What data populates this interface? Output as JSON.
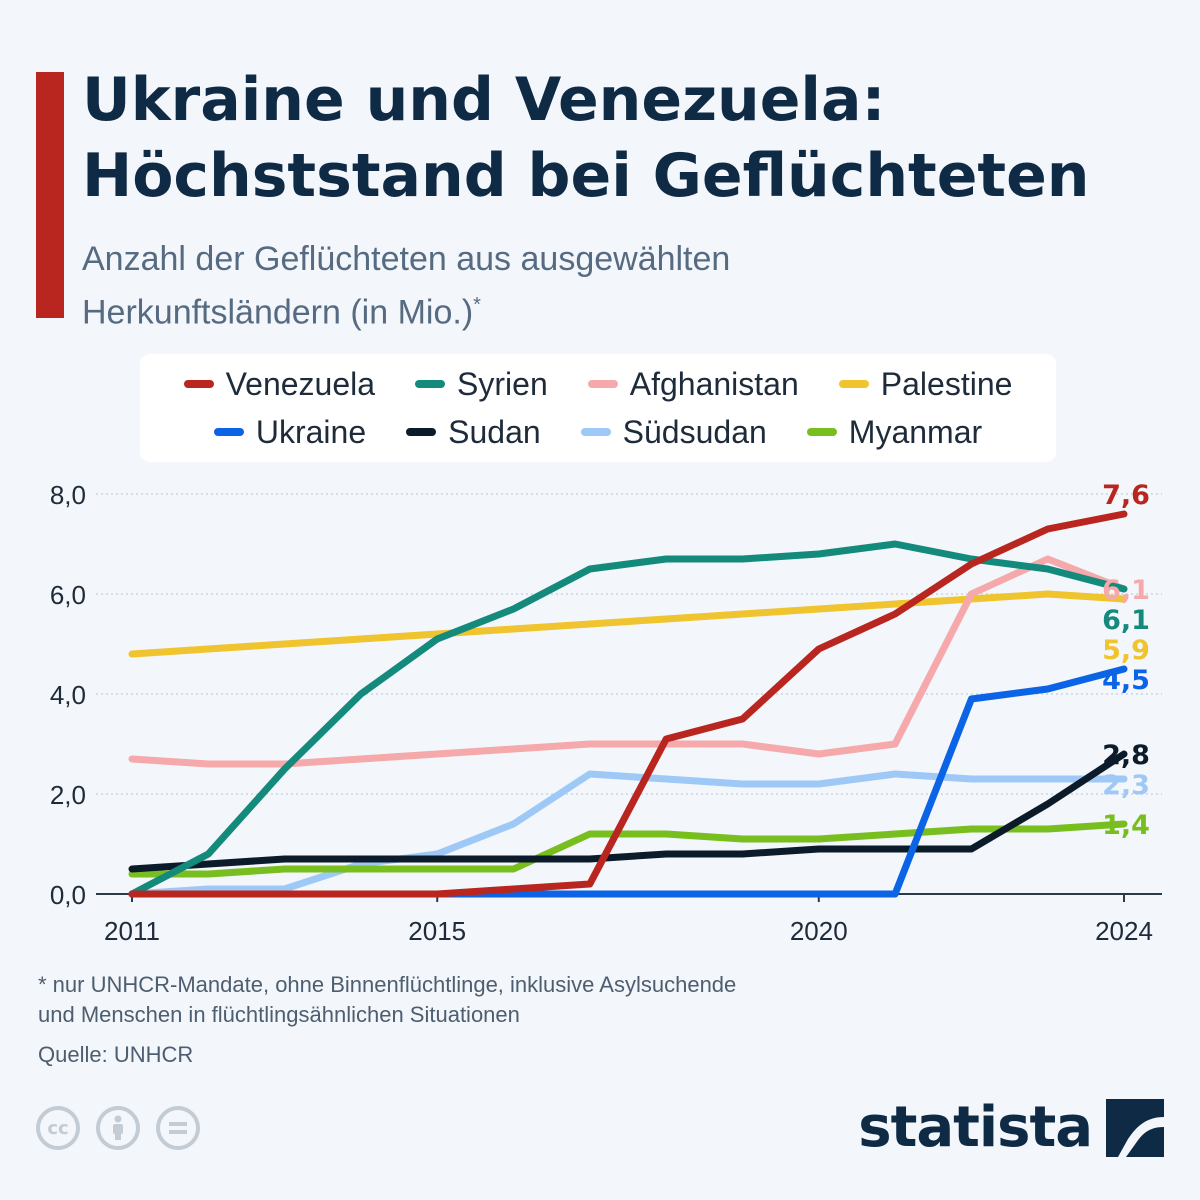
{
  "header": {
    "title_line1": "Ukraine und Venezuela:",
    "title_line2": "Höchststand bei Geflüchteten",
    "subtitle_line1": "Anzahl der Geflüchteten aus ausgewählten",
    "subtitle_line2": "Herkunftsländern (in Mio.)",
    "subtitle_mark": "*"
  },
  "colors": {
    "accent": "#b8261f",
    "Venezuela": "#b8261f",
    "Syrien": "#138a7c",
    "Afghanistan": "#f5a9ab",
    "Palestine": "#efc42e",
    "Ukraine": "#0b63e5",
    "Sudan": "#0c1b2a",
    "Südsudan": "#9ec9f7",
    "Myanmar": "#78be1e"
  },
  "chart_data": {
    "type": "line",
    "x": [
      2011,
      2012,
      2013,
      2014,
      2015,
      2016,
      2017,
      2018,
      2019,
      2020,
      2021,
      2022,
      2023,
      2024
    ],
    "xticks": [
      2011,
      2015,
      2020,
      2024
    ],
    "ylim": [
      0,
      8
    ],
    "yticks": [
      "0,0",
      "2,0",
      "4,0",
      "6,0",
      "8,0"
    ],
    "grid": true,
    "legend_placement": "top",
    "series": [
      {
        "name": "Venezuela",
        "values": [
          0,
          0,
          0,
          0,
          0,
          0.1,
          0.2,
          3.1,
          3.5,
          4.9,
          5.6,
          6.6,
          7.3,
          7.6
        ],
        "end_label": "7,6"
      },
      {
        "name": "Syrien",
        "values": [
          0,
          0.8,
          2.5,
          4.0,
          5.1,
          5.7,
          6.5,
          6.7,
          6.7,
          6.8,
          7.0,
          6.7,
          6.5,
          6.1
        ],
        "end_label": "6,1"
      },
      {
        "name": "Afghanistan",
        "values": [
          2.7,
          2.6,
          2.6,
          2.7,
          2.8,
          2.9,
          3.0,
          3.0,
          3.0,
          2.8,
          3.0,
          6.0,
          6.7,
          6.1
        ],
        "end_label": "6,1"
      },
      {
        "name": "Palestine",
        "values": [
          4.8,
          4.9,
          5.0,
          5.1,
          5.2,
          5.3,
          5.4,
          5.5,
          5.6,
          5.7,
          5.8,
          5.9,
          6.0,
          5.9
        ],
        "end_label": "5,9"
      },
      {
        "name": "Ukraine",
        "values": [
          0,
          0,
          0,
          0,
          0,
          0,
          0,
          0,
          0,
          0,
          0,
          3.9,
          4.1,
          4.5
        ],
        "end_label": "4,5"
      },
      {
        "name": "Sudan",
        "values": [
          0.5,
          0.6,
          0.7,
          0.7,
          0.7,
          0.7,
          0.7,
          0.8,
          0.8,
          0.9,
          0.9,
          0.9,
          1.8,
          2.8
        ],
        "end_label": "2,8"
      },
      {
        "name": "Südsudan",
        "values": [
          0,
          0.1,
          0.1,
          0.6,
          0.8,
          1.4,
          2.4,
          2.3,
          2.2,
          2.2,
          2.4,
          2.3,
          2.3,
          2.3
        ],
        "end_label": "2,3"
      },
      {
        "name": "Myanmar",
        "values": [
          0.4,
          0.4,
          0.5,
          0.5,
          0.5,
          0.5,
          1.2,
          1.2,
          1.1,
          1.1,
          1.2,
          1.3,
          1.3,
          1.4
        ],
        "end_label": "1,4"
      }
    ]
  },
  "legend": {
    "row1": [
      "Venezuela",
      "Syrien",
      "Afghanistan",
      "Palestine"
    ],
    "row2": [
      "Ukraine",
      "Sudan",
      "Südsudan",
      "Myanmar"
    ]
  },
  "footer": {
    "footnote": "* nur UNHCR-Mandate, ohne Binnenflüchtlinge, inklusive Asylsuchende\n   und Menschen in flüchtlingsähnlichen Situationen",
    "source": "Quelle: UNHCR",
    "brand": "statista",
    "license_icons": [
      "cc-icon",
      "attribution-icon",
      "no-derivatives-icon"
    ]
  }
}
